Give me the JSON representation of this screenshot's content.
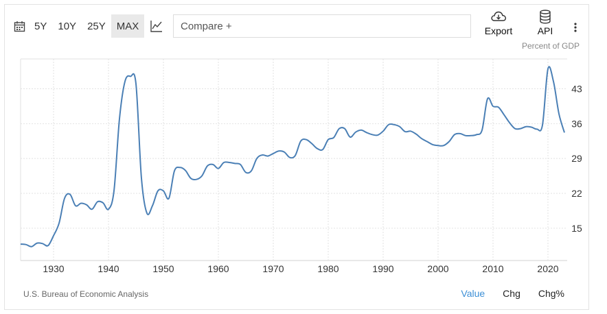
{
  "toolbar": {
    "ranges": [
      "5Y",
      "10Y",
      "25Y",
      "MAX"
    ],
    "active_range": "MAX",
    "compare_placeholder": "Compare +",
    "export_label": "Export",
    "api_label": "API"
  },
  "unit_label": "Percent of GDP",
  "source": "U.S. Bureau of Economic Analysis",
  "modes": [
    "Value",
    "Chg",
    "Chg%"
  ],
  "active_mode": "Value",
  "colors": {
    "line": "#4a7fb5",
    "grid": "#e2e2e2",
    "active": "#3c8fd6"
  },
  "chart_data": {
    "type": "line",
    "title": "",
    "xlabel": "",
    "ylabel": "Percent of GDP",
    "xlim": [
      1924,
      2023.5
    ],
    "ylim": [
      8.5,
      49
    ],
    "xticks": [
      1930,
      1940,
      1950,
      1960,
      1970,
      1980,
      1990,
      2000,
      2010,
      2020
    ],
    "yticks": [
      15,
      22,
      29,
      36,
      43
    ],
    "grid": true,
    "legend": "none",
    "series": [
      {
        "x": [
          1924,
          1925,
          1926,
          1927,
          1928,
          1929,
          1930,
          1931,
          1932,
          1933,
          1934,
          1935,
          1936,
          1937,
          1938,
          1939,
          1940,
          1941,
          1942,
          1943,
          1944,
          1945,
          1946,
          1947,
          1948,
          1949,
          1950,
          1951,
          1952,
          1953,
          1954,
          1955,
          1956,
          1957,
          1958,
          1959,
          1960,
          1961,
          1962,
          1963,
          1964,
          1965,
          1966,
          1967,
          1968,
          1969,
          1970,
          1971,
          1972,
          1973,
          1974,
          1975,
          1976,
          1977,
          1978,
          1979,
          1980,
          1981,
          1982,
          1983,
          1984,
          1985,
          1986,
          1987,
          1988,
          1989,
          1990,
          1991,
          1992,
          1993,
          1994,
          1995,
          1996,
          1997,
          1998,
          1999,
          2000,
          2001,
          2002,
          2003,
          2004,
          2005,
          2006,
          2007,
          2008,
          2009,
          2010,
          2011,
          2012,
          2013,
          2014,
          2015,
          2016,
          2017,
          2018,
          2019,
          2020,
          2021,
          2022,
          2023
        ],
        "values": [
          11.8,
          11.7,
          11.3,
          12.0,
          11.9,
          11.5,
          13.5,
          16.0,
          21.0,
          21.8,
          19.5,
          20.0,
          19.7,
          18.8,
          20.3,
          20.1,
          18.8,
          22.5,
          37.0,
          44.5,
          45.5,
          44.0,
          25.0,
          18.0,
          19.5,
          22.5,
          22.5,
          21.0,
          26.5,
          27.2,
          26.6,
          25.0,
          24.8,
          25.5,
          27.5,
          27.8,
          27.0,
          28.2,
          28.2,
          28.0,
          27.8,
          26.2,
          26.5,
          29.0,
          29.7,
          29.5,
          30.0,
          30.5,
          30.3,
          29.2,
          29.6,
          32.5,
          32.8,
          32.0,
          31.0,
          30.8,
          32.8,
          33.2,
          35.0,
          35.0,
          33.3,
          34.3,
          34.7,
          34.2,
          33.8,
          33.7,
          34.5,
          35.8,
          35.8,
          35.4,
          34.4,
          34.5,
          33.9,
          33.0,
          32.4,
          31.8,
          31.6,
          31.6,
          32.4,
          33.8,
          34.0,
          33.6,
          33.6,
          33.8,
          34.7,
          41.0,
          39.5,
          39.3,
          37.8,
          36.2,
          35.0,
          35.0,
          35.4,
          35.3,
          34.9,
          35.7,
          47.0,
          44.5,
          38.0,
          34.2
        ]
      }
    ]
  }
}
